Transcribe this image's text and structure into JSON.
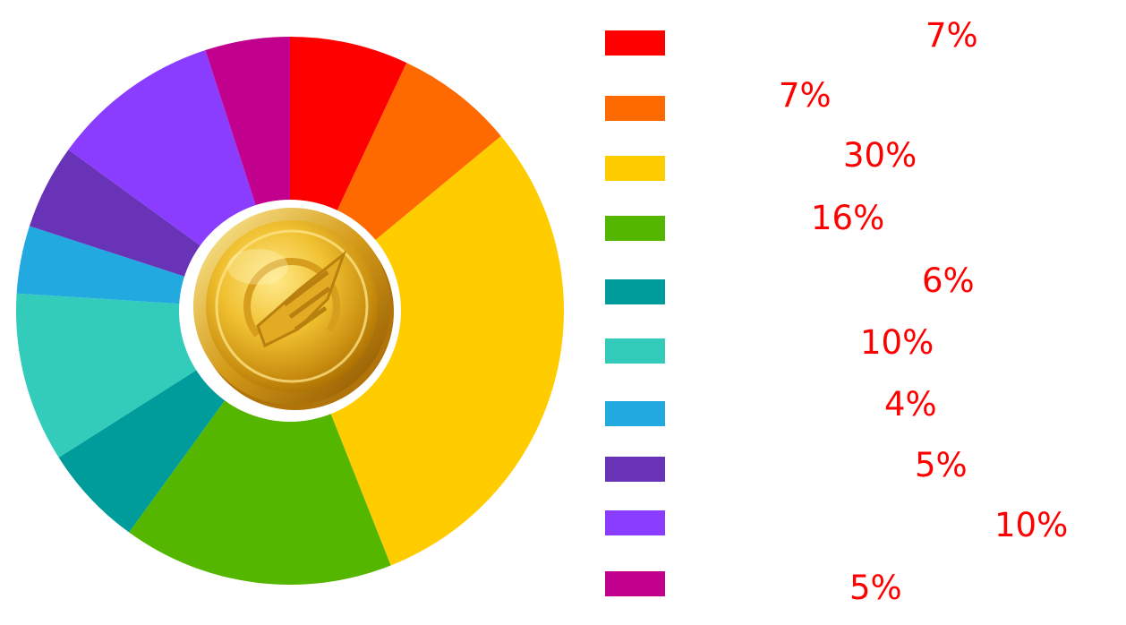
{
  "chart_data": {
    "type": "pie",
    "donut": true,
    "labels": [
      "7%",
      "7%",
      "30%",
      "16%",
      "6%",
      "10%",
      "4%",
      "5%",
      "10%",
      "5%"
    ],
    "values": [
      7,
      7,
      30,
      16,
      6,
      10,
      4,
      5,
      10,
      5
    ],
    "colors": [
      "#ff0000",
      "#ff6a00",
      "#ffcc00",
      "#55b600",
      "#009b9b",
      "#33ccbb",
      "#22aae0",
      "#6933b8",
      "#8a3cff",
      "#c2008e"
    ],
    "start_angle_deg": 0,
    "direction": "clockwise",
    "center_icon": "gold-coin-logo",
    "legend_position": "right",
    "label_color": "#ff0000"
  }
}
